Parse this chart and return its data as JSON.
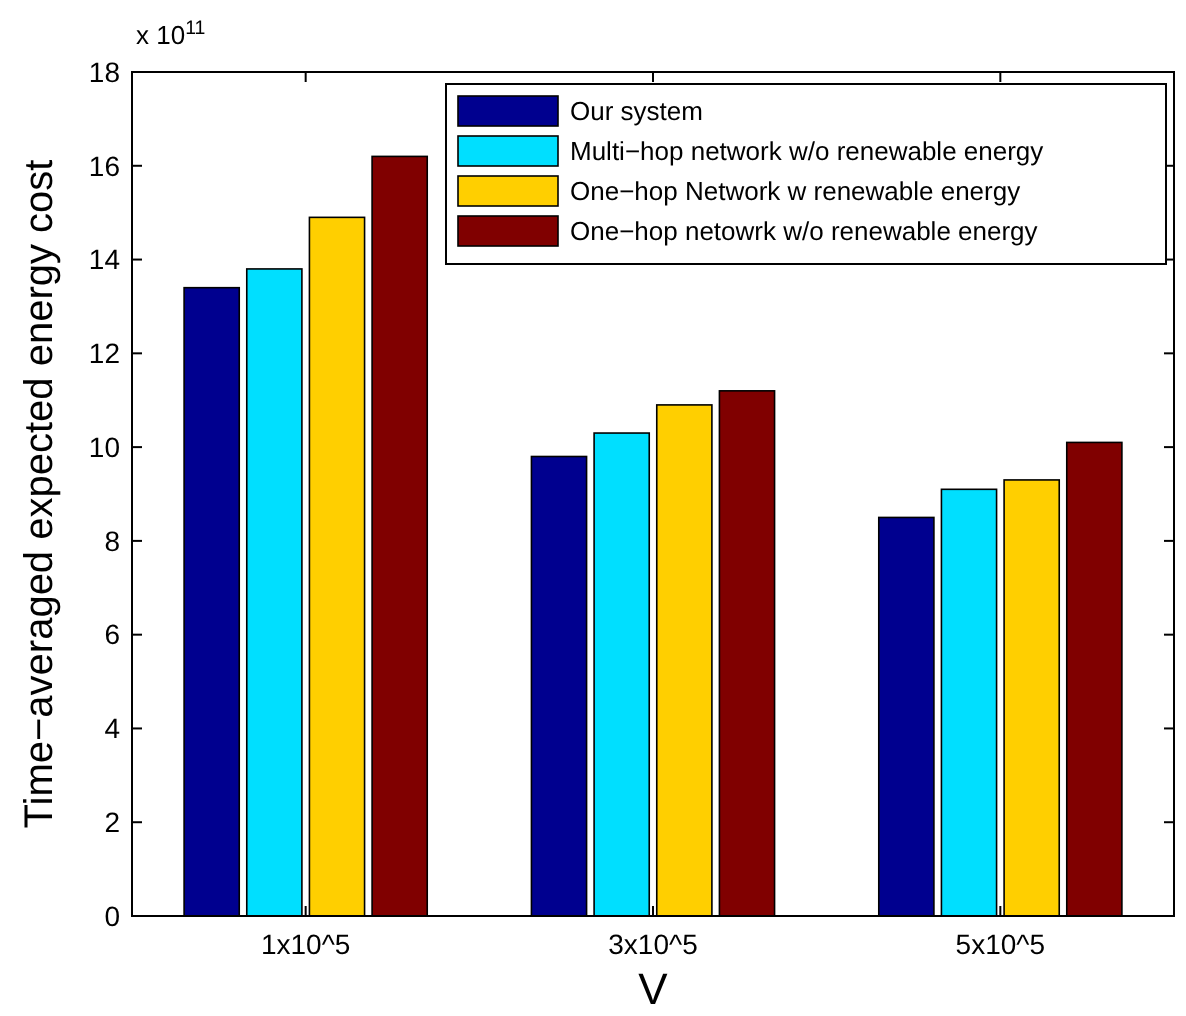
{
  "chart_data": {
    "type": "bar",
    "xlabel": "V",
    "ylabel": "Time−averaged expected energy cost",
    "categories": [
      "1x10^5",
      "3x10^5",
      "5x10^5"
    ],
    "series": [
      {
        "name": "Our system",
        "color": "#00008f",
        "values": [
          13.4,
          9.8,
          8.5
        ]
      },
      {
        "name": "Multi−hop network w/o renewable energy",
        "color": "#00dfff",
        "values": [
          13.8,
          10.3,
          9.1
        ]
      },
      {
        "name": "One−hop Network w renewable energy",
        "color": "#ffcf00",
        "values": [
          14.9,
          10.9,
          9.3
        ]
      },
      {
        "name": "One−hop netowrk w/o renewable energy",
        "color": "#800000",
        "values": [
          16.2,
          11.2,
          10.1
        ]
      }
    ],
    "ylim": [
      0,
      18
    ],
    "yticks": [
      0,
      2,
      4,
      6,
      8,
      10,
      12,
      14,
      16,
      18
    ],
    "legend": "top right",
    "grid": false,
    "annotations": [
      "x 10$^{11}$"
    ]
  }
}
